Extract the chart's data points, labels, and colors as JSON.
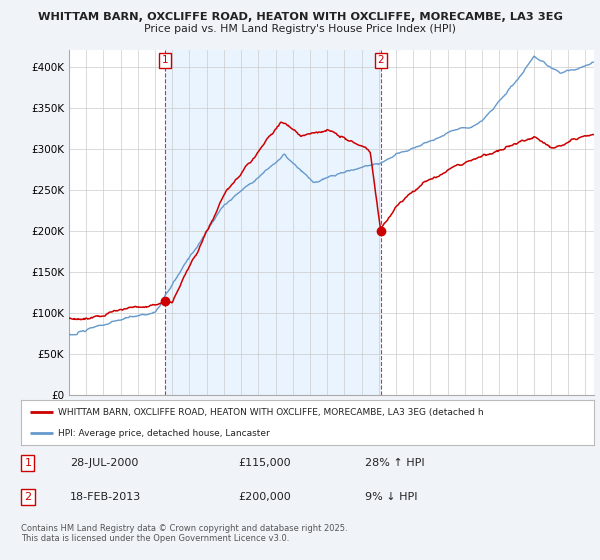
{
  "title1": "WHITTAM BARN, OXCLIFFE ROAD, HEATON WITH OXCLIFFE, MORECAMBE, LA3 3EG",
  "title2": "Price paid vs. HM Land Registry's House Price Index (HPI)",
  "ylim": [
    0,
    420000
  ],
  "yticks": [
    0,
    50000,
    100000,
    150000,
    200000,
    250000,
    300000,
    350000,
    400000
  ],
  "ytick_labels": [
    "£0",
    "£50K",
    "£100K",
    "£150K",
    "£200K",
    "£250K",
    "£300K",
    "£350K",
    "£400K"
  ],
  "sale1_x": 2000.57,
  "sale1_y": 115000,
  "sale2_x": 2013.12,
  "sale2_y": 200000,
  "legend1_label": "WHITTAM BARN, OXCLIFFE ROAD, HEATON WITH OXCLIFFE, MORECAMBE, LA3 3EG (detached h",
  "legend2_label": "HPI: Average price, detached house, Lancaster",
  "footnote": "Contains HM Land Registry data © Crown copyright and database right 2025.\nThis data is licensed under the Open Government Licence v3.0.",
  "red_color": "#cc0000",
  "blue_color": "#6699cc",
  "shade_color": "#ddeeff",
  "bg_color": "#f0f4f8",
  "plot_bg": "#ffffff",
  "grid_color": "#cccccc",
  "xmin": 1995,
  "xmax": 2025.5
}
